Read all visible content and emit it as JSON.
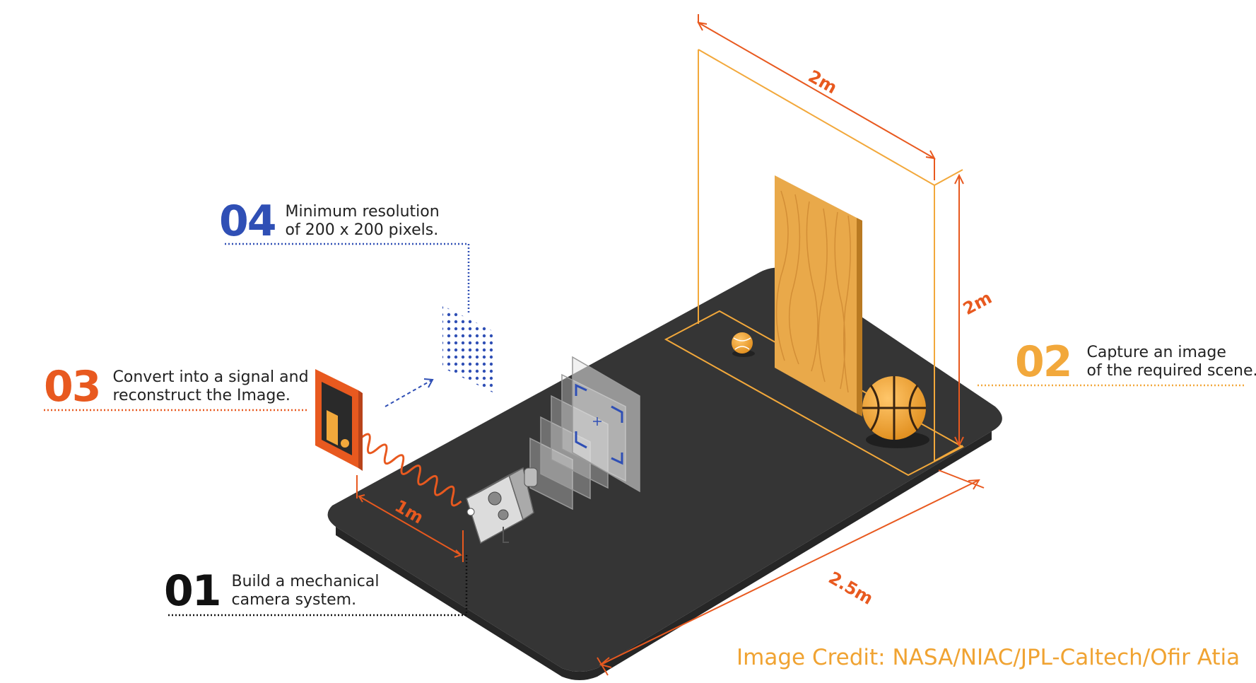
{
  "steps": [
    {
      "number": "01",
      "line1": "Build a mechanical",
      "line2": "camera system.",
      "color": "#111111"
    },
    {
      "number": "02",
      "line1": "Capture an image",
      "line2": "of the required scene.",
      "color": "#f2a83b"
    },
    {
      "number": "03",
      "line1": "Convert into a signal and",
      "line2": "reconstruct the Image.",
      "color": "#e8591f"
    },
    {
      "number": "04",
      "line1": "Minimum resolution",
      "line2": "of 200 x 200 pixels.",
      "color": "#2f4fb5"
    }
  ],
  "dimensions": {
    "distance_camera": "1m",
    "frame_width": "2m",
    "frame_height": "2m",
    "table_length": "2.5m"
  },
  "credit": "Image Credit: NASA/NIAC/JPL-Caltech/Ofir Atia",
  "colors": {
    "platform": "#353535",
    "orange_accent": "#e8591f",
    "amber": "#f2a83b",
    "blue": "#2f4fb5",
    "wood": "#e9a94a"
  }
}
